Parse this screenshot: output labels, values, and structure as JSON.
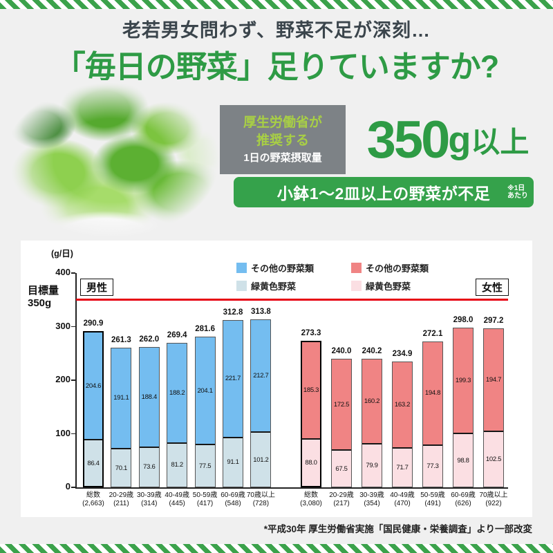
{
  "colors": {
    "brand_green": "#2e9b45",
    "banner_green": "#35a24b",
    "stripe_green": "#3ba24b",
    "dark_heading": "#3b454c",
    "male_other_blue": "#74bdf0",
    "male_green_yellow": "#cfe1e8",
    "female_other_red": "#f08484",
    "female_green_yellow": "#fbdfe3",
    "target_line_red": "#e60012"
  },
  "header": {
    "line1": "老若男女問わず、野菜不足が深刻…",
    "line2": "「毎日の野菜」足りていますか?"
  },
  "recommend": {
    "line1": "厚生労働省が",
    "line2": "推奨する",
    "line3": "1日の野菜摂取量",
    "amount_number": "350",
    "amount_g": "g",
    "amount_suffix": "以上"
  },
  "banner": {
    "text": "小鉢1〜2皿以上の野菜が不足",
    "note_line1": "※1日",
    "note_line2": "あたり"
  },
  "footnote": "*平成30年 厚生労働省実施「国民健康・栄養調査」より一部改変",
  "chart_data": {
    "type": "bar",
    "stacked": true,
    "unit_label": "(g/日)",
    "ylim": [
      0,
      400
    ],
    "yticks": [
      0,
      100,
      200,
      300,
      400
    ],
    "grid": false,
    "legend_position": "top",
    "target": {
      "value": 350,
      "label_line1": "目標量",
      "label_line2": "350g",
      "color": "#e60012"
    },
    "legend": [
      {
        "label": "その他の野菜類",
        "color": "#74bdf0",
        "group": "男性"
      },
      {
        "label": "緑黄色野菜",
        "color": "#cfe1e8",
        "group": "男性"
      },
      {
        "label": "その他の野菜類",
        "color": "#f08484",
        "group": "女性"
      },
      {
        "label": "緑黄色野菜",
        "color": "#fbdfe3",
        "group": "女性"
      }
    ],
    "groups": [
      {
        "name": "男性",
        "colors": {
          "other": "#74bdf0",
          "green_yellow": "#cfe1e8"
        },
        "bars": [
          {
            "category": "総数",
            "n": "(2,663)",
            "total": 290.9,
            "other": 204.6,
            "green_yellow": 86.4,
            "emphasized": true
          },
          {
            "category": "20-29歳",
            "n": "(211)",
            "total": 261.3,
            "other": 191.1,
            "green_yellow": 70.1
          },
          {
            "category": "30-39歳",
            "n": "(314)",
            "total": 262.0,
            "other": 188.4,
            "green_yellow": 73.6
          },
          {
            "category": "40-49歳",
            "n": "(445)",
            "total": 269.4,
            "other": 188.2,
            "green_yellow": 81.2
          },
          {
            "category": "50-59歳",
            "n": "(417)",
            "total": 281.6,
            "other": 204.1,
            "green_yellow": 77.5
          },
          {
            "category": "60-69歳",
            "n": "(548)",
            "total": 312.8,
            "other": 221.7,
            "green_yellow": 91.1
          },
          {
            "category": "70歳以上",
            "n": "(728)",
            "total": 313.8,
            "other": 212.7,
            "green_yellow": 101.2
          }
        ]
      },
      {
        "name": "女性",
        "colors": {
          "other": "#f08484",
          "green_yellow": "#fbdfe3"
        },
        "bars": [
          {
            "category": "総数",
            "n": "(3,080)",
            "total": 273.3,
            "other": 185.3,
            "green_yellow": 88.0,
            "emphasized": true
          },
          {
            "category": "20-29歳",
            "n": "(217)",
            "total": 240.0,
            "other": 172.5,
            "green_yellow": 67.5
          },
          {
            "category": "30-39歳",
            "n": "(354)",
            "total": 240.2,
            "other": 160.2,
            "green_yellow": 79.9
          },
          {
            "category": "40-49歳",
            "n": "(470)",
            "total": 234.9,
            "other": 163.2,
            "green_yellow": 71.7
          },
          {
            "category": "50-59歳",
            "n": "(491)",
            "total": 272.1,
            "other": 194.8,
            "green_yellow": 77.3
          },
          {
            "category": "60-69歳",
            "n": "(626)",
            "total": 298.0,
            "other": 199.3,
            "green_yellow": 98.8
          },
          {
            "category": "70歳以上",
            "n": "(922)",
            "total": 297.2,
            "other": 194.7,
            "green_yellow": 102.5
          }
        ]
      }
    ]
  }
}
